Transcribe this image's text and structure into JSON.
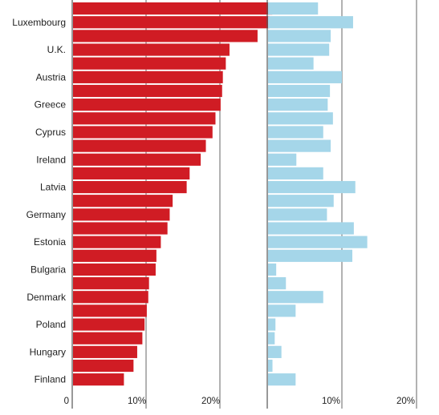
{
  "chart_data": [
    {
      "type": "bar",
      "orientation": "horizontal",
      "categories": [
        "",
        "Luxembourg",
        "",
        "U.K.",
        "",
        "Austria",
        "",
        "Greece",
        "",
        "Cyprus",
        "",
        "Ireland",
        "",
        "Latvia",
        "",
        "Germany",
        "",
        "Estonia",
        "",
        "Bulgaria",
        "",
        "Denmark",
        "",
        "Poland",
        "",
        "Hungary",
        "",
        "Finland"
      ],
      "values": [
        27.1,
        26.7,
        25.1,
        21.3,
        20.8,
        20.4,
        20.3,
        20.1,
        19.4,
        19.0,
        18.1,
        17.4,
        15.9,
        15.5,
        13.6,
        13.2,
        12.9,
        12.0,
        11.4,
        11.3,
        10.4,
        10.3,
        10.1,
        9.8,
        9.5,
        8.8,
        8.3,
        7.0
      ],
      "color": "#d01c24",
      "xlim": [
        0,
        29
      ],
      "x_ticks": [
        "0",
        "10%",
        "20%"
      ],
      "grid": true,
      "grid_color": "#555555"
    },
    {
      "type": "bar",
      "orientation": "horizontal",
      "categories": [
        "",
        "Luxembourg",
        "",
        "U.K.",
        "",
        "Austria",
        "",
        "Greece",
        "",
        "Cyprus",
        "",
        "Ireland",
        "",
        "Latvia",
        "",
        "Germany",
        "",
        "Estonia",
        "",
        "Bulgaria",
        "",
        "Denmark",
        "",
        "Poland",
        "",
        "Hungary",
        "",
        "Finland"
      ],
      "values": [
        6.8,
        11.5,
        8.5,
        8.3,
        6.2,
        10.0,
        8.4,
        8.1,
        8.8,
        7.5,
        8.5,
        3.9,
        7.5,
        11.8,
        8.9,
        8.0,
        11.6,
        13.4,
        11.4,
        1.2,
        2.5,
        7.5,
        3.8,
        1.1,
        1.0,
        1.9,
        0.7,
        3.8
      ],
      "color": "#a5d6e9",
      "xlim": [
        0,
        20
      ],
      "x_ticks": [
        "10%",
        "20%"
      ],
      "grid": true,
      "grid_color": "#555555"
    }
  ]
}
